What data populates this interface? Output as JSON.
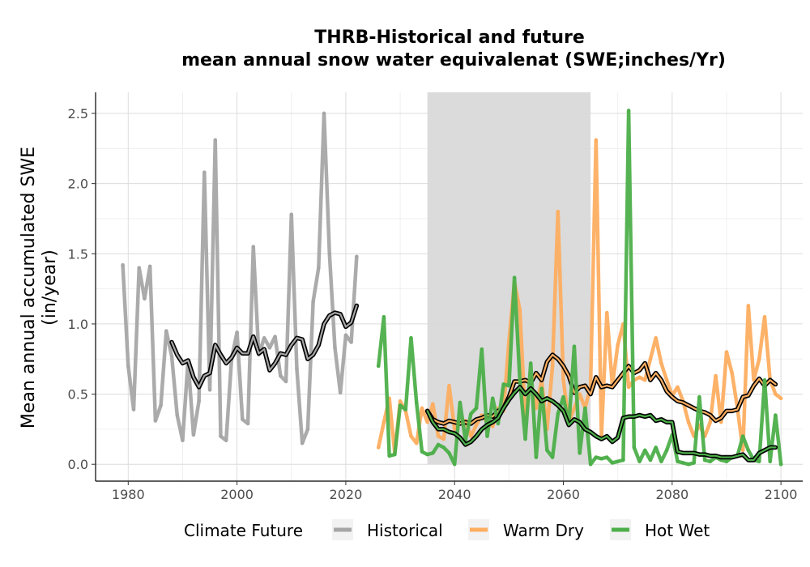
{
  "chart_data": {
    "type": "line",
    "title_line1": "THRB-Historical and future",
    "title_line2": "mean annual snow water equivalenat (SWE;inches/Yr)",
    "ylabel_line1": "Mean annual accumulated SWE",
    "ylabel_line2": "(in/year)",
    "xlim": [
      1974,
      2104
    ],
    "ylim": [
      -0.12,
      2.65
    ],
    "x_ticks": [
      1980,
      2000,
      2020,
      2040,
      2060,
      2080,
      2100
    ],
    "x_tick_labels": [
      "1980",
      "2000",
      "2020",
      "2040",
      "2060",
      "2080",
      "2100"
    ],
    "y_ticks": [
      0.0,
      0.5,
      1.0,
      1.5,
      2.0,
      2.5
    ],
    "y_tick_labels": [
      "0.0",
      "0.5",
      "1.0",
      "1.5",
      "2.0",
      "2.5"
    ],
    "grid": true,
    "shaded_period": [
      2035,
      2065
    ],
    "legend": {
      "title": "Climate Future",
      "placement": "bottom",
      "entries": [
        {
          "label": "Historical",
          "color": "#a6a6a6"
        },
        {
          "label": "Warm Dry",
          "color": "#fdae61"
        },
        {
          "label": "Hot Wet",
          "color": "#4daf4a"
        }
      ]
    },
    "series": [
      {
        "name": "Historical",
        "color": "#a6a6a6",
        "x": [
          1979,
          1980,
          1981,
          1982,
          1983,
          1984,
          1985,
          1986,
          1987,
          1988,
          1989,
          1990,
          1991,
          1992,
          1993,
          1994,
          1995,
          1996,
          1997,
          1998,
          1999,
          2000,
          2001,
          2002,
          2003,
          2004,
          2005,
          2006,
          2007,
          2008,
          2009,
          2010,
          2011,
          2012,
          2013,
          2014,
          2015,
          2016,
          2017,
          2018,
          2019,
          2020,
          2021,
          2022
        ],
        "values": [
          1.42,
          0.7,
          0.39,
          1.4,
          1.18,
          1.41,
          0.31,
          0.42,
          0.95,
          0.77,
          0.35,
          0.17,
          0.74,
          0.21,
          0.45,
          2.08,
          0.53,
          2.31,
          0.2,
          0.17,
          0.75,
          0.94,
          0.32,
          0.29,
          1.55,
          0.78,
          0.9,
          0.83,
          0.91,
          0.63,
          0.59,
          1.78,
          0.68,
          0.15,
          0.25,
          1.16,
          1.4,
          2.5,
          1.5,
          0.83,
          0.51,
          0.92,
          0.87,
          1.48
        ]
      },
      {
        "name": "",
        "color": "#000000",
        "role": "historical-trend",
        "x": [
          1988,
          1989,
          1990,
          1991,
          1992,
          1993,
          1994,
          1995,
          1996,
          1997,
          1998,
          1999,
          2000,
          2001,
          2002,
          2003,
          2004,
          2005,
          2006,
          2007,
          2008,
          2009,
          2010,
          2011,
          2012,
          2013,
          2014,
          2015,
          2016,
          2017,
          2018,
          2019,
          2020,
          2021,
          2022
        ],
        "values": [
          0.87,
          0.78,
          0.72,
          0.74,
          0.62,
          0.55,
          0.63,
          0.65,
          0.85,
          0.78,
          0.72,
          0.76,
          0.83,
          0.79,
          0.79,
          0.91,
          0.79,
          0.82,
          0.67,
          0.72,
          0.79,
          0.78,
          0.85,
          0.9,
          0.89,
          0.75,
          0.78,
          0.85,
          1.0,
          1.06,
          1.08,
          1.07,
          0.98,
          1.01,
          1.13
        ]
      },
      {
        "name": "Warm Dry",
        "color": "#fdae61",
        "x": [
          2026,
          2027,
          2028,
          2029,
          2030,
          2031,
          2032,
          2033,
          2034,
          2035,
          2036,
          2037,
          2038,
          2039,
          2040,
          2041,
          2042,
          2043,
          2044,
          2045,
          2046,
          2047,
          2048,
          2049,
          2050,
          2051,
          2052,
          2053,
          2054,
          2055,
          2056,
          2057,
          2058,
          2059,
          2060,
          2061,
          2062,
          2063,
          2064,
          2065,
          2066,
          2067,
          2068,
          2069,
          2070,
          2071,
          2072,
          2073,
          2074,
          2075,
          2076,
          2077,
          2078,
          2079,
          2080,
          2081,
          2082,
          2083,
          2084,
          2085,
          2086,
          2087,
          2088,
          2089,
          2090,
          2091,
          2092,
          2093,
          2094,
          2095,
          2096,
          2097,
          2098,
          2099,
          2100
        ],
        "values": [
          0.12,
          0.3,
          0.47,
          0.08,
          0.45,
          0.38,
          0.2,
          0.15,
          0.4,
          0.3,
          0.43,
          0.2,
          0.18,
          0.56,
          0.25,
          0.3,
          0.31,
          0.2,
          0.28,
          0.35,
          0.3,
          0.27,
          0.4,
          0.38,
          0.88,
          1.3,
          1.1,
          0.33,
          0.6,
          0.4,
          0.6,
          0.25,
          0.7,
          1.8,
          0.6,
          0.3,
          0.4,
          0.5,
          0.4,
          0.56,
          2.31,
          0.2,
          1.08,
          0.56,
          0.85,
          1.0,
          0.55,
          0.6,
          0.62,
          0.6,
          0.75,
          0.9,
          0.72,
          0.6,
          0.49,
          0.55,
          0.45,
          0.3,
          0.2,
          0.28,
          0.2,
          0.3,
          0.63,
          0.3,
          0.8,
          0.65,
          0.4,
          0.1,
          1.13,
          0.6,
          0.75,
          1.05,
          0.6,
          0.5,
          0.47
        ]
      },
      {
        "name": "",
        "color": "#000000",
        "role": "warm-dry-trend",
        "x": [
          2035,
          2036,
          2037,
          2038,
          2039,
          2040,
          2041,
          2042,
          2043,
          2044,
          2045,
          2046,
          2047,
          2048,
          2049,
          2050,
          2051,
          2052,
          2053,
          2054,
          2055,
          2056,
          2057,
          2058,
          2059,
          2060,
          2061,
          2062,
          2063,
          2064,
          2065,
          2066,
          2067,
          2068,
          2069,
          2070,
          2071,
          2072,
          2073,
          2074,
          2075,
          2076,
          2077,
          2078,
          2079,
          2080,
          2081,
          2082,
          2083,
          2084,
          2085,
          2086,
          2087,
          2088,
          2089,
          2090,
          2091,
          2092,
          2093,
          2094,
          2095,
          2096,
          2097,
          2098,
          2099
        ],
        "values": [
          0.38,
          0.32,
          0.3,
          0.29,
          0.31,
          0.3,
          0.29,
          0.3,
          0.29,
          0.32,
          0.33,
          0.35,
          0.34,
          0.38,
          0.4,
          0.48,
          0.59,
          0.59,
          0.6,
          0.58,
          0.65,
          0.6,
          0.73,
          0.78,
          0.75,
          0.7,
          0.63,
          0.51,
          0.55,
          0.56,
          0.5,
          0.62,
          0.55,
          0.56,
          0.55,
          0.6,
          0.65,
          0.7,
          0.65,
          0.67,
          0.72,
          0.6,
          0.65,
          0.6,
          0.52,
          0.48,
          0.45,
          0.44,
          0.42,
          0.4,
          0.38,
          0.37,
          0.35,
          0.31,
          0.33,
          0.38,
          0.38,
          0.39,
          0.48,
          0.49,
          0.56,
          0.61,
          0.56,
          0.6,
          0.57
        ]
      },
      {
        "name": "Hot Wet",
        "color": "#4daf4a",
        "x": [
          2026,
          2027,
          2028,
          2029,
          2030,
          2031,
          2032,
          2033,
          2034,
          2035,
          2036,
          2037,
          2038,
          2039,
          2040,
          2041,
          2042,
          2043,
          2044,
          2045,
          2046,
          2047,
          2048,
          2049,
          2050,
          2051,
          2052,
          2053,
          2054,
          2055,
          2056,
          2057,
          2058,
          2059,
          2060,
          2061,
          2062,
          2063,
          2064,
          2065,
          2066,
          2067,
          2068,
          2069,
          2070,
          2071,
          2072,
          2073,
          2074,
          2075,
          2076,
          2077,
          2078,
          2079,
          2080,
          2081,
          2082,
          2083,
          2084,
          2085,
          2086,
          2087,
          2088,
          2089,
          2090,
          2091,
          2092,
          2093,
          2094,
          2095,
          2096,
          2097,
          2098,
          2099,
          2100
        ],
        "values": [
          0.7,
          1.05,
          0.06,
          0.07,
          0.42,
          0.39,
          0.9,
          0.44,
          0.09,
          0.07,
          0.08,
          0.14,
          0.12,
          0.08,
          0.0,
          0.44,
          0.17,
          0.36,
          0.4,
          0.82,
          0.2,
          0.47,
          0.29,
          0.57,
          0.56,
          1.33,
          0.6,
          0.18,
          0.72,
          0.05,
          0.54,
          0.1,
          0.05,
          0.36,
          0.48,
          0.28,
          0.84,
          0.08,
          0.4,
          0.0,
          0.05,
          0.04,
          0.05,
          0.01,
          0.02,
          0.03,
          2.52,
          0.12,
          0.02,
          0.1,
          0.03,
          0.12,
          0.02,
          0.1,
          0.21,
          0.02,
          0.01,
          0.0,
          0.01,
          0.48,
          0.03,
          0.02,
          0.05,
          0.03,
          0.02,
          0.05,
          0.06,
          0.2,
          0.1,
          0.03,
          0.02,
          0.6,
          0.02,
          0.35,
          0.0
        ]
      },
      {
        "name": "",
        "color": "#000000",
        "role": "hot-wet-trend",
        "x": [
          2035,
          2036,
          2037,
          2038,
          2039,
          2040,
          2041,
          2042,
          2043,
          2044,
          2045,
          2046,
          2047,
          2048,
          2049,
          2050,
          2051,
          2052,
          2053,
          2054,
          2055,
          2056,
          2057,
          2058,
          2059,
          2060,
          2061,
          2062,
          2063,
          2064,
          2065,
          2066,
          2067,
          2068,
          2069,
          2070,
          2071,
          2072,
          2073,
          2074,
          2075,
          2076,
          2077,
          2078,
          2079,
          2080,
          2081,
          2082,
          2083,
          2084,
          2085,
          2086,
          2087,
          2088,
          2089,
          2090,
          2091,
          2092,
          2093,
          2094,
          2095,
          2096,
          2097,
          2098,
          2099
        ],
        "values": [
          0.38,
          0.3,
          0.25,
          0.25,
          0.23,
          0.22,
          0.19,
          0.14,
          0.16,
          0.2,
          0.25,
          0.28,
          0.3,
          0.33,
          0.4,
          0.46,
          0.51,
          0.55,
          0.5,
          0.54,
          0.5,
          0.45,
          0.47,
          0.45,
          0.42,
          0.38,
          0.28,
          0.32,
          0.3,
          0.25,
          0.23,
          0.2,
          0.18,
          0.2,
          0.16,
          0.19,
          0.33,
          0.34,
          0.34,
          0.35,
          0.34,
          0.35,
          0.31,
          0.32,
          0.3,
          0.3,
          0.09,
          0.08,
          0.08,
          0.08,
          0.07,
          0.07,
          0.06,
          0.06,
          0.05,
          0.05,
          0.05,
          0.06,
          0.07,
          0.03,
          0.03,
          0.08,
          0.1,
          0.12,
          0.12
        ]
      }
    ]
  }
}
